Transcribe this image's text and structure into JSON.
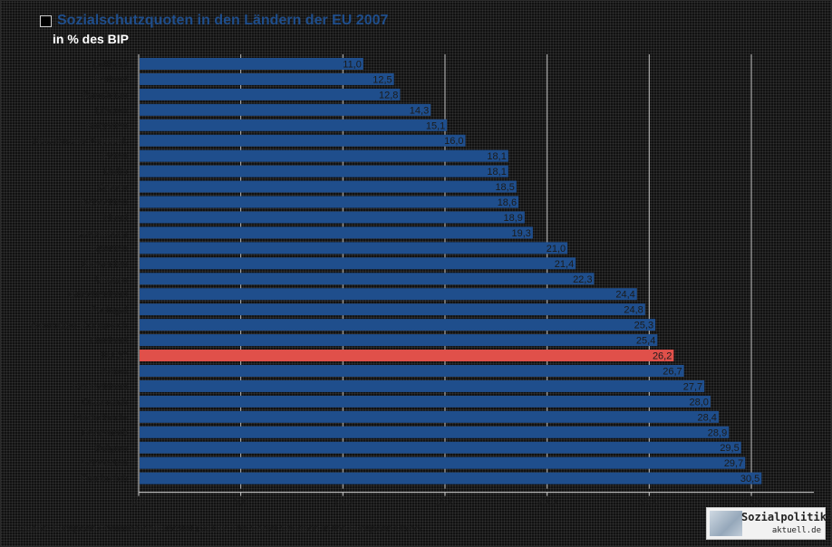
{
  "header": {
    "title": "Sozialschutzquoten in den Ländern der EU 2007",
    "subtitle": "in % des BIP"
  },
  "source_text": "Quelle: European Commission/Eurostat (2010): The Social Situation in the European Union.",
  "logo": {
    "line1": "Sozialpolitik-",
    "line2": "aktuell.de"
  },
  "colors": {
    "bar": "#1f4e8c",
    "highlight": "#e0504a",
    "grid": "#bfbfbf",
    "label": "#1b1b1b"
  },
  "chart_data": {
    "type": "bar",
    "orientation": "horizontal",
    "title": "Sozialschutzquoten in den Ländern der EU 2007",
    "subtitle": "in % des BIP",
    "xlim": [
      0,
      30
    ],
    "xticks": [
      "0,0",
      "5,0",
      "10,0",
      "15,0",
      "20,0",
      "25,0",
      "30,0"
    ],
    "highlight": "EU 27",
    "categories": [
      "Lettland",
      "Estland",
      "Rumänien",
      "Litauen",
      "Bulgarien",
      "Slowakische Republik",
      "Polen",
      "Malta",
      "Zypern",
      "Tschechien",
      "Irland",
      "Luxemburg",
      "Spanien",
      "Slowenien",
      "Ungarn",
      "Griechenland",
      "Portugal",
      "Vereinigtes Königreich",
      "Finnland",
      "EU 27",
      "Italien",
      "Deutschland",
      "Österreich",
      "Niederlande",
      "Dänemark",
      "Belgien",
      "Schweden",
      "Frankreich"
    ],
    "values": [
      11.0,
      12.5,
      12.8,
      14.3,
      15.1,
      16.0,
      18.1,
      18.1,
      18.5,
      18.6,
      18.9,
      19.3,
      21.0,
      21.4,
      22.3,
      24.4,
      24.8,
      25.3,
      25.4,
      26.2,
      26.7,
      27.7,
      28.0,
      28.4,
      28.9,
      29.5,
      29.7,
      30.5
    ],
    "value_labels": [
      "11,0",
      "12,5",
      "12,8",
      "14,3",
      "15,1",
      "16,0",
      "18,1",
      "18,1",
      "18,5",
      "18,6",
      "18,9",
      "19,3",
      "21,0",
      "21,4",
      "22,3",
      "24,4",
      "24,8",
      "25,3",
      "25,4",
      "26,2",
      "26,7",
      "27,7",
      "28,0",
      "28,4",
      "28,9",
      "29,5",
      "29,7",
      "30,5"
    ]
  }
}
